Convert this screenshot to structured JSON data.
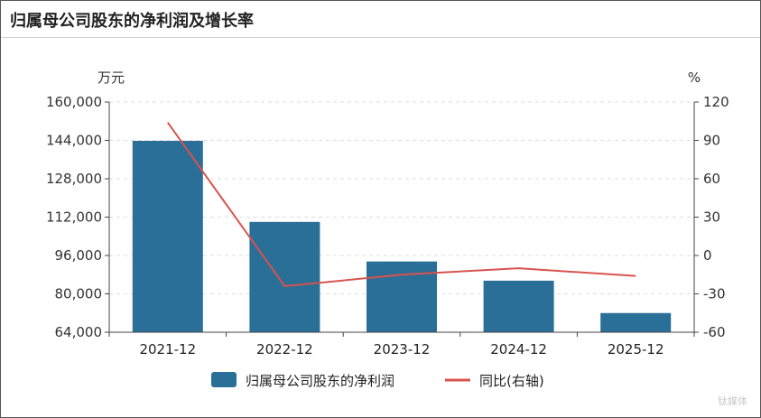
{
  "title": "归属母公司股东的净利润及增长率",
  "watermark": "钛媒体",
  "chart_data": {
    "type": "bar",
    "categories": [
      "2021-12",
      "2022-12",
      "2023-12",
      "2024-12",
      "2025-12"
    ],
    "series": [
      {
        "name": "归属母公司股东的净利润",
        "type": "bar",
        "axis": "left",
        "color": "#2a6f97",
        "values": [
          143800,
          110000,
          93500,
          85500,
          72000
        ]
      },
      {
        "name": "同比(右轴)",
        "type": "line",
        "axis": "right",
        "color": "#d9534f",
        "values": [
          104,
          -24,
          -15,
          -10,
          -16
        ]
      }
    ],
    "y_left": {
      "unit": "万元",
      "min": 64000,
      "max": 160000,
      "ticks": [
        64000,
        80000,
        96000,
        112000,
        128000,
        144000,
        160000
      ],
      "tick_labels": [
        "64,000",
        "80,000",
        "96,000",
        "112,000",
        "128,000",
        "144,000",
        "160,000"
      ]
    },
    "y_right": {
      "unit": "%",
      "min": -60,
      "max": 120,
      "ticks": [
        -60,
        -30,
        0,
        30,
        60,
        90,
        120
      ],
      "tick_labels": [
        "-60",
        "-30",
        "0",
        "30",
        "60",
        "90",
        "120"
      ]
    },
    "grid": true,
    "legend": "bottom"
  }
}
